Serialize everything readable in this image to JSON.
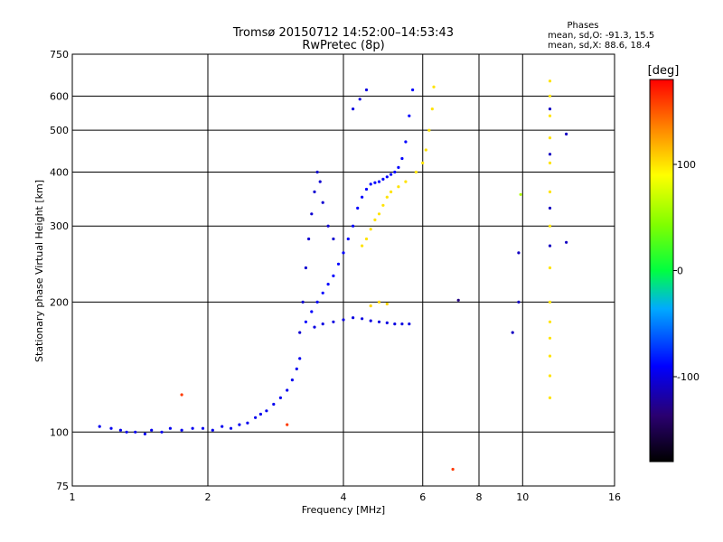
{
  "chart_data": {
    "type": "scatter",
    "title": "Tromsø 20150712 14:52:00–14:53:43",
    "subtitle": "RwPretec (8p)",
    "xlabel": "Frequency [MHz]",
    "ylabel": "Stationary phase Virtual Height [km]",
    "x_scale": "log",
    "y_scale": "log",
    "xlim": [
      1,
      16
    ],
    "ylim": [
      75,
      750
    ],
    "x_ticks": [
      1,
      2,
      4,
      6,
      8,
      10,
      16
    ],
    "y_ticks": [
      75,
      100,
      200,
      300,
      400,
      500,
      600,
      750
    ],
    "grid": true,
    "phases": {
      "heading": "Phases",
      "line_o": "mean, sd,O: -91.3, 15.5",
      "line_x": "mean, sd,X:  88.6, 18.4"
    },
    "colorbar": {
      "label": "[deg]",
      "min": -180,
      "max": 180,
      "ticks": [
        100,
        0,
        -100
      ],
      "tick_labels": [
        "100",
        "0",
        "-100"
      ],
      "colormap": "rainbow"
    },
    "series": [
      {
        "phase": -95,
        "points": [
          [
            1.15,
            103
          ],
          [
            1.22,
            102
          ],
          [
            1.28,
            101
          ],
          [
            1.32,
            100
          ],
          [
            1.38,
            100
          ],
          [
            1.45,
            99
          ],
          [
            1.5,
            101
          ],
          [
            1.58,
            100
          ],
          [
            1.65,
            102
          ],
          [
            1.75,
            101
          ],
          [
            1.85,
            102
          ],
          [
            1.95,
            102
          ],
          [
            2.05,
            101
          ],
          [
            2.15,
            103
          ],
          [
            2.25,
            102
          ],
          [
            2.35,
            104
          ],
          [
            2.45,
            105
          ],
          [
            2.55,
            108
          ],
          [
            2.62,
            110
          ],
          [
            2.7,
            112
          ],
          [
            2.8,
            116
          ],
          [
            2.9,
            120
          ],
          [
            3.0,
            125
          ],
          [
            3.08,
            132
          ],
          [
            3.15,
            140
          ],
          [
            3.2,
            148
          ]
        ]
      },
      {
        "phase": -105,
        "points": [
          [
            3.2,
            170
          ],
          [
            3.25,
            200
          ],
          [
            3.3,
            240
          ],
          [
            3.35,
            280
          ],
          [
            3.4,
            320
          ],
          [
            3.45,
            360
          ],
          [
            3.5,
            400
          ],
          [
            3.55,
            380
          ],
          [
            3.6,
            340
          ],
          [
            3.7,
            300
          ],
          [
            3.8,
            280
          ]
        ]
      },
      {
        "phase": -90,
        "points": [
          [
            3.3,
            180
          ],
          [
            3.4,
            190
          ],
          [
            3.5,
            200
          ],
          [
            3.6,
            210
          ],
          [
            3.7,
            220
          ],
          [
            3.8,
            230
          ],
          [
            3.9,
            245
          ],
          [
            4.0,
            260
          ],
          [
            4.1,
            280
          ],
          [
            4.2,
            300
          ],
          [
            4.3,
            330
          ],
          [
            4.4,
            350
          ],
          [
            4.5,
            365
          ],
          [
            4.6,
            375
          ],
          [
            4.7,
            378
          ],
          [
            4.8,
            380
          ],
          [
            4.9,
            385
          ],
          [
            5.0,
            390
          ],
          [
            5.1,
            395
          ],
          [
            5.2,
            400
          ],
          [
            5.3,
            410
          ],
          [
            5.4,
            430
          ],
          [
            5.5,
            470
          ],
          [
            5.6,
            540
          ],
          [
            5.7,
            620
          ]
        ]
      },
      {
        "phase": -100,
        "points": [
          [
            4.2,
            560
          ],
          [
            4.35,
            590
          ],
          [
            4.5,
            620
          ]
        ]
      },
      {
        "phase": -100,
        "points": [
          [
            3.45,
            175
          ],
          [
            3.6,
            178
          ],
          [
            3.8,
            180
          ],
          [
            4.0,
            182
          ],
          [
            4.2,
            184
          ],
          [
            4.4,
            183
          ],
          [
            4.6,
            181
          ],
          [
            4.8,
            180
          ],
          [
            5.0,
            179
          ],
          [
            5.2,
            178
          ],
          [
            5.4,
            178
          ],
          [
            5.6,
            178
          ]
        ]
      },
      {
        "phase": 100,
        "points": [
          [
            4.4,
            270
          ],
          [
            4.5,
            280
          ],
          [
            4.6,
            295
          ],
          [
            4.7,
            310
          ],
          [
            4.8,
            320
          ],
          [
            4.9,
            335
          ],
          [
            5.0,
            350
          ],
          [
            5.1,
            360
          ],
          [
            5.3,
            370
          ],
          [
            5.5,
            380
          ],
          [
            5.8,
            400
          ],
          [
            6.0,
            420
          ],
          [
            6.1,
            450
          ],
          [
            6.2,
            500
          ],
          [
            6.3,
            560
          ],
          [
            6.35,
            630
          ]
        ]
      },
      {
        "phase": 105,
        "points": [
          [
            4.6,
            196
          ],
          [
            4.8,
            200
          ],
          [
            5.0,
            198
          ]
        ]
      },
      {
        "phase": 100,
        "points": [
          [
            11.5,
            650
          ],
          [
            11.5,
            600
          ],
          [
            11.5,
            540
          ],
          [
            11.5,
            480
          ],
          [
            11.5,
            420
          ],
          [
            11.5,
            360
          ],
          [
            11.5,
            300
          ],
          [
            11.5,
            240
          ],
          [
            11.5,
            200
          ],
          [
            11.5,
            180
          ],
          [
            11.5,
            165
          ],
          [
            11.5,
            150
          ],
          [
            11.5,
            135
          ],
          [
            11.5,
            120
          ]
        ]
      },
      {
        "phase": -110,
        "points": [
          [
            11.5,
            560
          ],
          [
            11.5,
            440
          ],
          [
            11.5,
            330
          ],
          [
            11.5,
            270
          ],
          [
            9.8,
            260
          ],
          [
            9.8,
            200
          ],
          [
            9.5,
            170
          ],
          [
            12.5,
            490
          ],
          [
            12.5,
            275
          ]
        ]
      },
      {
        "phase": 60,
        "points": [
          [
            9.9,
            355
          ]
        ]
      },
      {
        "phase": -130,
        "points": [
          [
            7.2,
            202
          ]
        ]
      },
      {
        "phase": 160,
        "points": [
          [
            7.0,
            82
          ],
          [
            1.75,
            122
          ],
          [
            3.0,
            104
          ]
        ]
      }
    ]
  }
}
